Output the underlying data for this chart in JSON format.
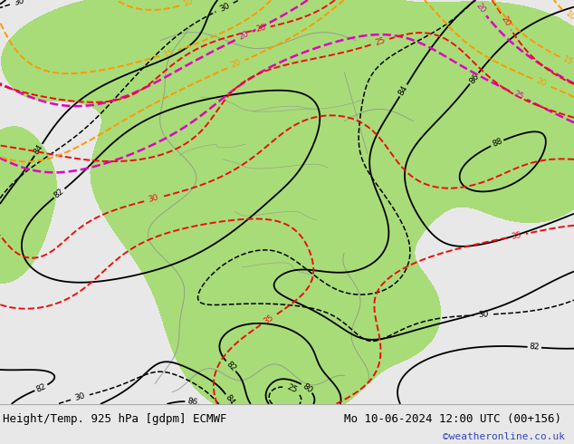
{
  "title_left": "Height/Temp. 925 hPa [gdpm] ECMWF",
  "title_right": "Mo 10-06-2024 12:00 UTC (00+156)",
  "copyright": "©weatheronline.co.uk",
  "bg_color": "#e0e0e0",
  "map_bg": "#d4d4d4",
  "ocean_color": "#d8d8d8",
  "land_color": "#c8c8c8",
  "green_color": "#a8dc78",
  "title_fontsize": 9,
  "copy_fontsize": 8,
  "copy_color": "#3344bb",
  "fig_width": 6.34,
  "fig_height": 4.9,
  "dpi": 100,
  "black": "#000000",
  "red": "#e81010",
  "orange": "#ff9900",
  "magenta": "#e000c0",
  "gray": "#909090",
  "dark_gray": "#606060"
}
